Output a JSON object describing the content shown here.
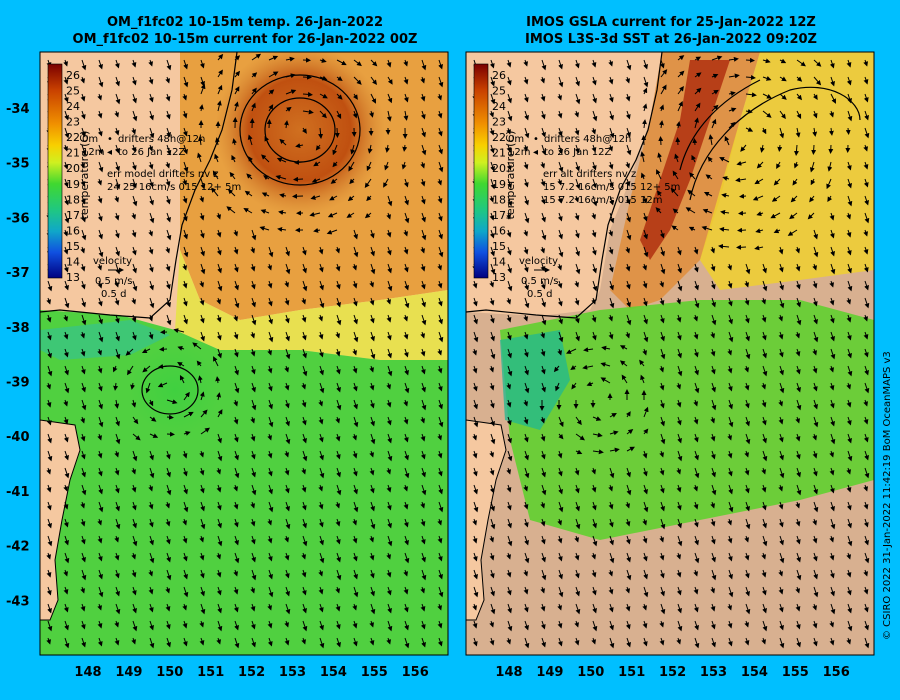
{
  "left_panel": {
    "title_line1": "OM_f1fc02 10-15m temp. 26-Jan-2022",
    "title_line2": "OM_f1fc02 10-15m current for 26-Jan-2022 00Z",
    "colorbar_label": "temperature (C)",
    "legend_drifters_48h": "drifters 48h@12h",
    "legend_drifters_to": "to 26 Jan 12Z",
    "legend_0m": "0m",
    "legend_12m": "12m",
    "legend_err_title": "err model drifters nv z",
    "legend_err_line1": "24 25 16cm/s 015 12+ 5m",
    "legend_err_line2": "",
    "velocity_label": "velocity",
    "velocity_speed": "0.5 m/s",
    "velocity_days": "0.5 d"
  },
  "right_panel": {
    "title_line1": "IMOS GSLA current for 25-Jan-2022 12Z",
    "title_line2": "IMOS L3S-3d SST at 26-Jan-2022 09:20Z",
    "colorbar_label": "temperature (C)",
    "legend_drifters_48h": "drifters 48h@12h",
    "legend_drifters_to": "to 26 Jan 12Z",
    "legend_0m": "0m",
    "legend_12m": "12m",
    "legend_err_title": "err alt drifters nv z",
    "legend_err_line1": "15 7.2 16cm/s 015 12+ 5m",
    "legend_err_line2": "15 7.2 16cm/s 015 12m",
    "velocity_label": "velocity",
    "velocity_speed": "0.5 m/s",
    "velocity_days": "0.5 d"
  },
  "latitude_labels": [
    "-34",
    "-35",
    "-36",
    "-37",
    "-38",
    "-39",
    "-40",
    "-41",
    "-42",
    "-43"
  ],
  "longitude_labels": [
    "148",
    "149",
    "150",
    "151",
    "152",
    "153",
    "154",
    "155",
    "156"
  ],
  "colorbar_ticks": [
    "26",
    "25",
    "24",
    "23",
    "22",
    "21",
    "20",
    "19",
    "18",
    "17",
    "16",
    "15",
    "14",
    "13"
  ],
  "colorbar_colors": [
    "#7a0000",
    "#a01800",
    "#c84000",
    "#e06000",
    "#f09000",
    "#f8c000",
    "#e8f000",
    "#a0e820",
    "#40d830",
    "#20c880",
    "#10a8c8",
    "#1060e0",
    "#1020b0",
    "#000080"
  ],
  "credit": "© CSIRO 2022   31-Jan-2022 11:42:19 BoM OceanMAPS v3"
}
